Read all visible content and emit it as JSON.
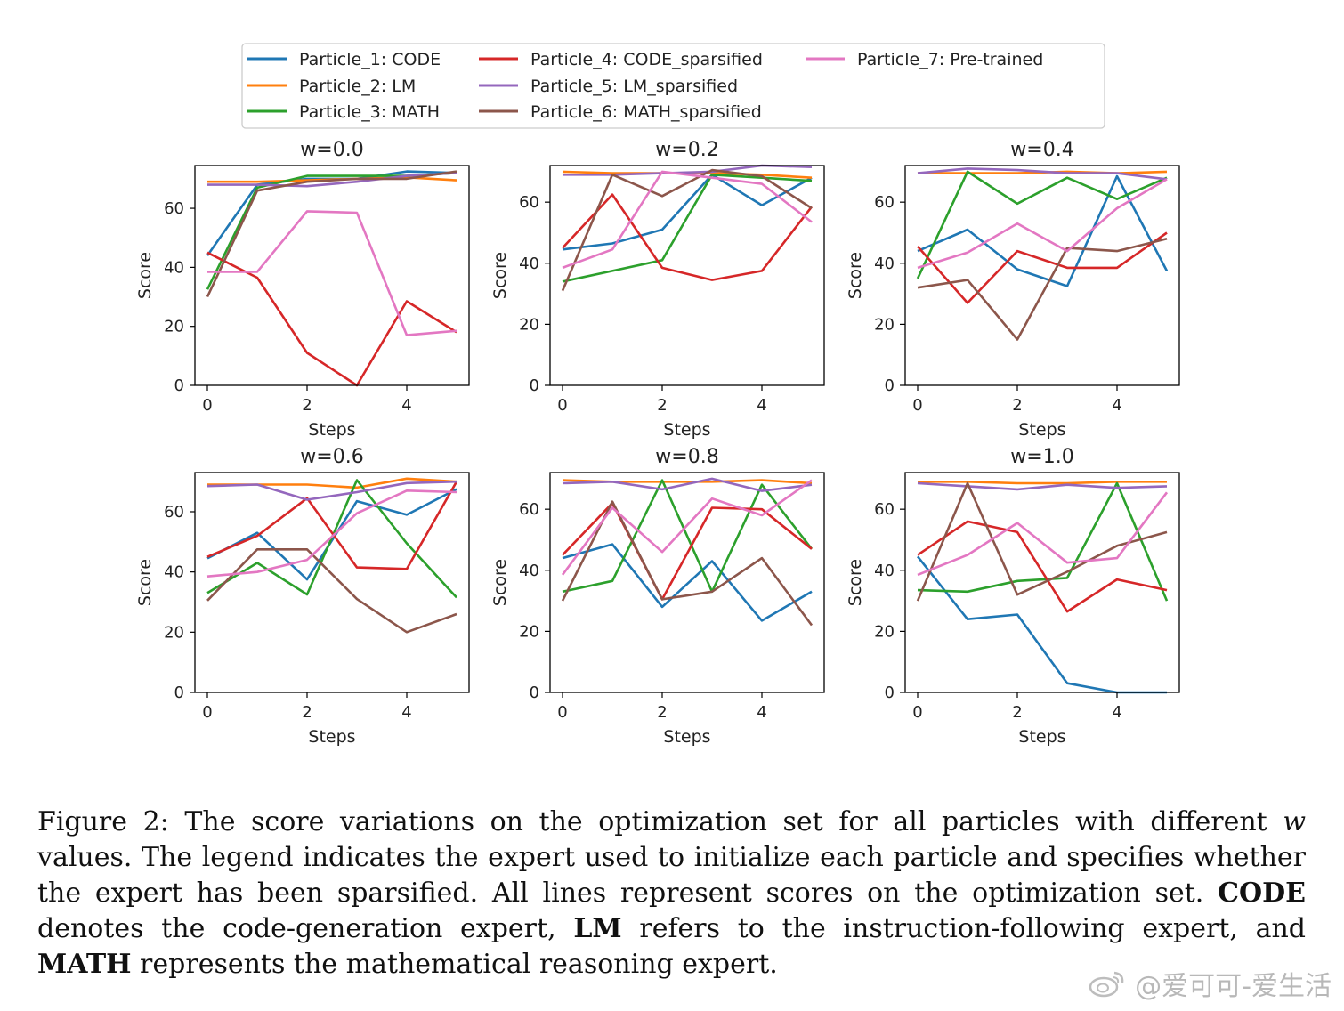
{
  "chart_data": {
    "type": "line",
    "legend": {
      "placement": "top",
      "entries": [
        {
          "label": "Particle_1: CODE",
          "color": "#1f77b4"
        },
        {
          "label": "Particle_2: LM",
          "color": "#ff7f0e"
        },
        {
          "label": "Particle_3: MATH",
          "color": "#2ca02c"
        },
        {
          "label": "Particle_4: CODE_sparsified",
          "color": "#d62728"
        },
        {
          "label": "Particle_5: LM_sparsified",
          "color": "#9467bd"
        },
        {
          "label": "Particle_6: MATH_sparsified",
          "color": "#8c564b"
        },
        {
          "label": "Particle_7: Pre-trained",
          "color": "#e377c2"
        }
      ]
    },
    "x": [
      0,
      1,
      2,
      3,
      4,
      5
    ],
    "xticks": [
      0,
      2,
      4
    ],
    "xlabel": "Steps",
    "ylabel": "Score",
    "xlim": [
      -0.25,
      5.25
    ],
    "grid": false,
    "subplots": [
      {
        "title": "w=0.0",
        "ylim": [
          0,
          74.5
        ],
        "yticks": [
          0,
          20,
          40,
          60
        ],
        "series": [
          {
            "name": "Particle_1: CODE",
            "values": [
              44,
              68,
              70,
              70,
              72.5,
              72
            ]
          },
          {
            "name": "Particle_2: LM",
            "values": [
              69,
              69,
              69.5,
              70,
              70.5,
              69.5
            ]
          },
          {
            "name": "Particle_3: MATH",
            "values": [
              32.5,
              67,
              71,
              71,
              71,
              72
            ]
          },
          {
            "name": "Particle_4: CODE_sparsified",
            "values": [
              45,
              36.5,
              11,
              0,
              28.5,
              18
            ]
          },
          {
            "name": "Particle_5: LM_sparsified",
            "values": [
              68,
              68,
              67.5,
              69,
              71,
              72
            ]
          },
          {
            "name": "Particle_6: MATH_sparsified",
            "values": [
              30,
              66,
              69,
              70,
              70,
              72.5
            ]
          },
          {
            "name": "Particle_7: Pre-trained",
            "values": [
              38.5,
              38.5,
              59,
              58.5,
              17,
              18.5
            ]
          }
        ]
      },
      {
        "title": "w=0.2",
        "ylim": [
          0,
          72
        ],
        "yticks": [
          0,
          20,
          40,
          60
        ],
        "series": [
          {
            "name": "Particle_1: CODE",
            "values": [
              44.5,
              46.5,
              51,
              69,
              59,
              68
            ]
          },
          {
            "name": "Particle_2: LM",
            "values": [
              70,
              69.5,
              69.5,
              69.5,
              69,
              68
            ]
          },
          {
            "name": "Particle_3: MATH",
            "values": [
              34,
              37.5,
              41,
              69,
              68,
              67
            ]
          },
          {
            "name": "Particle_4: CODE_sparsified",
            "values": [
              45,
              62.5,
              38.5,
              34.5,
              37.5,
              58.5
            ]
          },
          {
            "name": "Particle_5: LM_sparsified",
            "values": [
              69,
              69,
              69.5,
              70,
              72,
              71.5
            ]
          },
          {
            "name": "Particle_6: MATH_sparsified",
            "values": [
              31,
              69,
              62,
              70.5,
              68.5,
              58
            ]
          },
          {
            "name": "Particle_7: Pre-trained",
            "values": [
              38.5,
              44.5,
              70,
              68,
              66,
              53.5
            ]
          }
        ]
      },
      {
        "title": "w=0.4",
        "ylim": [
          0,
          72
        ],
        "yticks": [
          0,
          20,
          40,
          60
        ],
        "series": [
          {
            "name": "Particle_1: CODE",
            "values": [
              44,
              51,
              38,
              32.5,
              68.5,
              37.5
            ]
          },
          {
            "name": "Particle_2: LM",
            "values": [
              69.5,
              69.5,
              69.5,
              70,
              69.5,
              70
            ]
          },
          {
            "name": "Particle_3: MATH",
            "values": [
              35,
              70,
              59.5,
              68,
              61,
              68
            ]
          },
          {
            "name": "Particle_4: CODE_sparsified",
            "values": [
              45.5,
              27,
              44,
              38.5,
              38.5,
              50
            ]
          },
          {
            "name": "Particle_5: LM_sparsified",
            "values": [
              69.5,
              71,
              70.5,
              69.5,
              69.5,
              67.5
            ]
          },
          {
            "name": "Particle_6: MATH_sparsified",
            "values": [
              32,
              34.5,
              15,
              45,
              44,
              48
            ]
          },
          {
            "name": "Particle_7: Pre-trained",
            "values": [
              38.5,
              43.5,
              53,
              44,
              58,
              67.5
            ]
          }
        ]
      },
      {
        "title": "w=0.6",
        "ylim": [
          0,
          73
        ],
        "yticks": [
          0,
          20,
          40,
          60
        ],
        "series": [
          {
            "name": "Particle_1: CODE",
            "values": [
              44.5,
              53,
              37.5,
              63.5,
              59,
              67.5
            ]
          },
          {
            "name": "Particle_2: LM",
            "values": [
              69,
              69,
              69,
              68,
              71,
              70
            ]
          },
          {
            "name": "Particle_3: MATH",
            "values": [
              33,
              43,
              32.5,
              70.5,
              49.5,
              31.5
            ]
          },
          {
            "name": "Particle_4: CODE_sparsified",
            "values": [
              45,
              52,
              64.5,
              41.5,
              41,
              70
            ]
          },
          {
            "name": "Particle_5: LM_sparsified",
            "values": [
              68.5,
              69,
              64,
              66.5,
              69.5,
              70
            ]
          },
          {
            "name": "Particle_6: MATH_sparsified",
            "values": [
              30.5,
              47.5,
              47.5,
              31,
              20,
              26
            ]
          },
          {
            "name": "Particle_7: Pre-trained",
            "values": [
              38.5,
              40,
              44,
              59.5,
              67,
              66.5
            ]
          }
        ]
      },
      {
        "title": "w=0.8",
        "ylim": [
          0,
          72
        ],
        "yticks": [
          0,
          20,
          40,
          60
        ],
        "series": [
          {
            "name": "Particle_1: CODE",
            "values": [
              44,
              48.5,
              28,
              43,
              23.5,
              33
            ]
          },
          {
            "name": "Particle_2: LM",
            "values": [
              69.5,
              69,
              69,
              69,
              69.5,
              68.5
            ]
          },
          {
            "name": "Particle_3: MATH",
            "values": [
              33,
              36.5,
              69.5,
              33,
              68,
              47
            ]
          },
          {
            "name": "Particle_4: CODE_sparsified",
            "values": [
              45,
              62,
              30.5,
              60.5,
              60,
              47
            ]
          },
          {
            "name": "Particle_5: LM_sparsified",
            "values": [
              68.5,
              69,
              66.5,
              70,
              66,
              68
            ]
          },
          {
            "name": "Particle_6: MATH_sparsified",
            "values": [
              30,
              62.5,
              30.5,
              33,
              44,
              22
            ]
          },
          {
            "name": "Particle_7: Pre-trained",
            "values": [
              38.5,
              60.5,
              46,
              63.5,
              58,
              69.5
            ]
          }
        ]
      },
      {
        "title": "w=1.0",
        "ylim": [
          0,
          72
        ],
        "yticks": [
          0,
          20,
          40,
          60
        ],
        "series": [
          {
            "name": "Particle_1: CODE",
            "values": [
              44.5,
              24,
              25.5,
              3,
              0,
              0
            ]
          },
          {
            "name": "Particle_2: LM",
            "values": [
              69,
              69,
              68.5,
              68.5,
              69,
              69
            ]
          },
          {
            "name": "Particle_3: MATH",
            "values": [
              33.5,
              33,
              36.5,
              37.5,
              68.5,
              30
            ]
          },
          {
            "name": "Particle_4: CODE_sparsified",
            "values": [
              45,
              56,
              52.5,
              26.5,
              37,
              33.5
            ]
          },
          {
            "name": "Particle_5: LM_sparsified",
            "values": [
              68.5,
              67.5,
              66.5,
              68,
              67,
              67.5
            ]
          },
          {
            "name": "Particle_6: MATH_sparsified",
            "values": [
              30,
              68.5,
              32,
              39.5,
              48,
              52.5
            ]
          },
          {
            "name": "Particle_7: Pre-trained",
            "values": [
              38.5,
              45,
              55.5,
              42.5,
              44,
              65.5
            ]
          }
        ]
      }
    ]
  },
  "caption": {
    "prefix": "Figure 2: The score variations on the optimization set for all particles with different ",
    "symbol": "w",
    "after_symbol": " values. The legend indicates the expert used to initialize each particle and specifies whether the expert has been sparsified. All lines represent scores on the optimization set. ",
    "code_term": "CODE",
    "code_desc": " denotes the code-generation expert, ",
    "lm_term": "LM",
    "lm_desc": " refers to the instruction-following expert, and ",
    "math_term": "MATH",
    "math_desc": " represents the mathematical reasoning expert."
  },
  "watermark": {
    "text": "@爱可可-爱生活"
  }
}
